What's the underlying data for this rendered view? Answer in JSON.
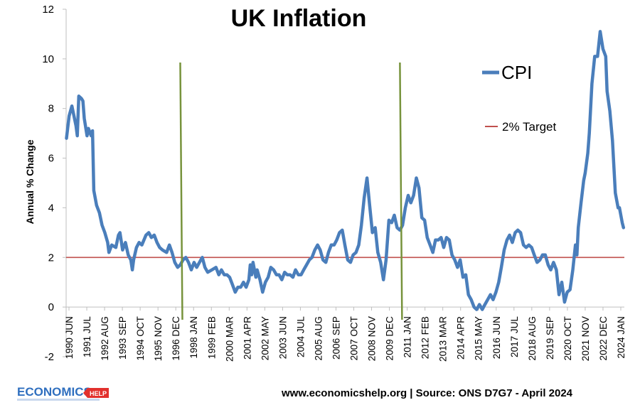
{
  "chart_data": {
    "type": "line",
    "title": "UK Inflation",
    "xlabel": "",
    "ylabel": "Annual % Change",
    "ylim": [
      -2,
      12
    ],
    "yticks": [
      -2,
      0,
      2,
      4,
      6,
      8,
      10,
      12
    ],
    "x_tick_labels": [
      "1990 JUN",
      "1991 JUL",
      "1992 AUG",
      "1993 SEP",
      "1994 OCT",
      "1995 NOV",
      "1996 DEC",
      "1998 JAN",
      "1999 FEB",
      "2000 MAR",
      "2001 APR",
      "2002 MAY",
      "2003 JUN",
      "2004 JUL",
      "2005 AUG",
      "2006 SEP",
      "2007 OCT",
      "2008 NOV",
      "2009 DEC",
      "2011 JAN",
      "2012 FEB",
      "2013 MAR",
      "2014 APR",
      "2015 MAY",
      "2016 JUN",
      "2017 JUL",
      "2018 AUG",
      "2019 SEP",
      "2020 OCT",
      "2021 NOV",
      "2022 DEC",
      "2024 JAN"
    ],
    "x_range": [
      1990.4,
      2024.3
    ],
    "grid": false,
    "legend": "right",
    "series": [
      {
        "name": "CPI",
        "color": "#4a7ebb",
        "points": [
          [
            1990.42,
            6.8
          ],
          [
            1990.58,
            7.7
          ],
          [
            1990.75,
            8.1
          ],
          [
            1991.0,
            7.3
          ],
          [
            1991.08,
            6.9
          ],
          [
            1991.17,
            8.5
          ],
          [
            1991.33,
            8.4
          ],
          [
            1991.42,
            8.3
          ],
          [
            1991.5,
            7.6
          ],
          [
            1991.67,
            6.9
          ],
          [
            1991.75,
            7.2
          ],
          [
            1991.92,
            6.9
          ],
          [
            1992.0,
            7.1
          ],
          [
            1992.08,
            4.7
          ],
          [
            1992.25,
            4.1
          ],
          [
            1992.42,
            3.8
          ],
          [
            1992.58,
            3.3
          ],
          [
            1992.75,
            3.0
          ],
          [
            1992.92,
            2.6
          ],
          [
            1993.0,
            2.2
          ],
          [
            1993.17,
            2.5
          ],
          [
            1993.42,
            2.4
          ],
          [
            1993.58,
            2.9
          ],
          [
            1993.67,
            3.0
          ],
          [
            1993.83,
            2.3
          ],
          [
            1994.0,
            2.6
          ],
          [
            1994.17,
            2.1
          ],
          [
            1994.33,
            1.9
          ],
          [
            1994.42,
            1.5
          ],
          [
            1994.5,
            1.9
          ],
          [
            1994.67,
            2.4
          ],
          [
            1994.83,
            2.6
          ],
          [
            1995.0,
            2.5
          ],
          [
            1995.25,
            2.9
          ],
          [
            1995.42,
            3.0
          ],
          [
            1995.58,
            2.8
          ],
          [
            1995.75,
            2.9
          ],
          [
            1995.92,
            2.6
          ],
          [
            1996.08,
            2.4
          ],
          [
            1996.25,
            2.3
          ],
          [
            1996.5,
            2.2
          ],
          [
            1996.67,
            2.5
          ],
          [
            1996.83,
            2.2
          ],
          [
            1997.0,
            1.8
          ],
          [
            1997.17,
            1.6
          ],
          [
            1997.33,
            1.7
          ],
          [
            1997.5,
            1.9
          ],
          [
            1997.67,
            2.0
          ],
          [
            1997.83,
            1.8
          ],
          [
            1998.0,
            1.5
          ],
          [
            1998.17,
            1.8
          ],
          [
            1998.33,
            1.6
          ],
          [
            1998.58,
            1.9
          ],
          [
            1998.67,
            2.0
          ],
          [
            1998.83,
            1.6
          ],
          [
            1999.0,
            1.4
          ],
          [
            1999.25,
            1.5
          ],
          [
            1999.5,
            1.6
          ],
          [
            1999.67,
            1.3
          ],
          [
            1999.83,
            1.5
          ],
          [
            2000.0,
            1.3
          ],
          [
            2000.17,
            1.3
          ],
          [
            2000.33,
            1.2
          ],
          [
            2000.5,
            0.9
          ],
          [
            2000.67,
            0.6
          ],
          [
            2000.83,
            0.8
          ],
          [
            2001.0,
            0.8
          ],
          [
            2001.17,
            1.0
          ],
          [
            2001.33,
            0.8
          ],
          [
            2001.5,
            1.1
          ],
          [
            2001.58,
            1.7
          ],
          [
            2001.67,
            1.3
          ],
          [
            2001.75,
            1.8
          ],
          [
            2001.92,
            1.2
          ],
          [
            2002.0,
            1.5
          ],
          [
            2002.17,
            1.1
          ],
          [
            2002.33,
            0.6
          ],
          [
            2002.5,
            1.0
          ],
          [
            2002.67,
            1.2
          ],
          [
            2002.83,
            1.6
          ],
          [
            2003.0,
            1.5
          ],
          [
            2003.17,
            1.3
          ],
          [
            2003.33,
            1.3
          ],
          [
            2003.5,
            1.1
          ],
          [
            2003.67,
            1.4
          ],
          [
            2003.83,
            1.3
          ],
          [
            2004.0,
            1.3
          ],
          [
            2004.17,
            1.2
          ],
          [
            2004.33,
            1.5
          ],
          [
            2004.5,
            1.3
          ],
          [
            2004.67,
            1.3
          ],
          [
            2004.83,
            1.5
          ],
          [
            2005.0,
            1.7
          ],
          [
            2005.17,
            1.9
          ],
          [
            2005.33,
            2.0
          ],
          [
            2005.5,
            2.3
          ],
          [
            2005.67,
            2.5
          ],
          [
            2005.83,
            2.3
          ],
          [
            2006.0,
            1.9
          ],
          [
            2006.17,
            1.8
          ],
          [
            2006.33,
            2.2
          ],
          [
            2006.5,
            2.5
          ],
          [
            2006.67,
            2.5
          ],
          [
            2006.83,
            2.7
          ],
          [
            2007.0,
            3.0
          ],
          [
            2007.17,
            3.1
          ],
          [
            2007.33,
            2.5
          ],
          [
            2007.5,
            1.9
          ],
          [
            2007.67,
            1.8
          ],
          [
            2007.83,
            2.1
          ],
          [
            2008.0,
            2.2
          ],
          [
            2008.17,
            2.5
          ],
          [
            2008.33,
            3.3
          ],
          [
            2008.5,
            4.4
          ],
          [
            2008.67,
            5.2
          ],
          [
            2008.83,
            4.1
          ],
          [
            2009.0,
            3.0
          ],
          [
            2009.17,
            3.2
          ],
          [
            2009.33,
            2.2
          ],
          [
            2009.5,
            1.8
          ],
          [
            2009.67,
            1.1
          ],
          [
            2009.83,
            1.9
          ],
          [
            2010.0,
            3.5
          ],
          [
            2010.17,
            3.4
          ],
          [
            2010.33,
            3.7
          ],
          [
            2010.5,
            3.2
          ],
          [
            2010.67,
            3.1
          ],
          [
            2010.83,
            3.3
          ],
          [
            2011.0,
            4.0
          ],
          [
            2011.17,
            4.5
          ],
          [
            2011.33,
            4.2
          ],
          [
            2011.5,
            4.5
          ],
          [
            2011.67,
            5.2
          ],
          [
            2011.83,
            4.8
          ],
          [
            2012.0,
            3.6
          ],
          [
            2012.17,
            3.5
          ],
          [
            2012.33,
            2.8
          ],
          [
            2012.5,
            2.5
          ],
          [
            2012.67,
            2.2
          ],
          [
            2012.83,
            2.7
          ],
          [
            2013.0,
            2.7
          ],
          [
            2013.17,
            2.8
          ],
          [
            2013.33,
            2.4
          ],
          [
            2013.5,
            2.8
          ],
          [
            2013.67,
            2.7
          ],
          [
            2013.83,
            2.1
          ],
          [
            2014.0,
            1.9
          ],
          [
            2014.17,
            1.6
          ],
          [
            2014.33,
            1.9
          ],
          [
            2014.5,
            1.2
          ],
          [
            2014.67,
            1.3
          ],
          [
            2014.83,
            0.5
          ],
          [
            2015.0,
            0.3
          ],
          [
            2015.17,
            0.0
          ],
          [
            2015.33,
            -0.1
          ],
          [
            2015.5,
            0.1
          ],
          [
            2015.67,
            -0.1
          ],
          [
            2015.83,
            0.1
          ],
          [
            2016.0,
            0.3
          ],
          [
            2016.17,
            0.5
          ],
          [
            2016.33,
            0.3
          ],
          [
            2016.5,
            0.6
          ],
          [
            2016.67,
            1.0
          ],
          [
            2016.83,
            1.6
          ],
          [
            2017.0,
            2.3
          ],
          [
            2017.17,
            2.7
          ],
          [
            2017.33,
            2.9
          ],
          [
            2017.5,
            2.6
          ],
          [
            2017.67,
            3.0
          ],
          [
            2017.83,
            3.1
          ],
          [
            2018.0,
            3.0
          ],
          [
            2018.17,
            2.5
          ],
          [
            2018.33,
            2.4
          ],
          [
            2018.5,
            2.5
          ],
          [
            2018.67,
            2.4
          ],
          [
            2018.83,
            2.1
          ],
          [
            2019.0,
            1.8
          ],
          [
            2019.17,
            1.9
          ],
          [
            2019.33,
            2.1
          ],
          [
            2019.5,
            2.1
          ],
          [
            2019.67,
            1.7
          ],
          [
            2019.83,
            1.5
          ],
          [
            2020.0,
            1.8
          ],
          [
            2020.17,
            1.5
          ],
          [
            2020.33,
            0.5
          ],
          [
            2020.5,
            1.0
          ],
          [
            2020.67,
            0.2
          ],
          [
            2020.83,
            0.6
          ],
          [
            2021.0,
            0.7
          ],
          [
            2021.17,
            1.5
          ],
          [
            2021.33,
            2.5
          ],
          [
            2021.42,
            2.1
          ],
          [
            2021.5,
            3.2
          ],
          [
            2021.67,
            4.2
          ],
          [
            2021.83,
            5.1
          ],
          [
            2021.92,
            5.4
          ],
          [
            2022.08,
            6.2
          ],
          [
            2022.17,
            7.0
          ],
          [
            2022.33,
            9.0
          ],
          [
            2022.5,
            10.1
          ],
          [
            2022.67,
            10.1
          ],
          [
            2022.83,
            11.1
          ],
          [
            2023.0,
            10.4
          ],
          [
            2023.17,
            10.1
          ],
          [
            2023.25,
            8.7
          ],
          [
            2023.42,
            7.9
          ],
          [
            2023.58,
            6.7
          ],
          [
            2023.75,
            4.6
          ],
          [
            2023.92,
            4.0
          ],
          [
            2024.0,
            4.0
          ],
          [
            2024.17,
            3.4
          ],
          [
            2024.25,
            3.2
          ]
        ]
      },
      {
        "name": "2% Target",
        "color": "#c0504d",
        "points": [
          [
            1990.4,
            2
          ],
          [
            2024.3,
            2
          ]
        ]
      }
    ],
    "vertical_markers": [
      1997.33,
      2010.67
    ],
    "marker_color": "#77933c"
  },
  "footer": {
    "source": "www.economicshelp.org | Source: ONS D7G7 - April 2024"
  },
  "logo": {
    "text": "ECONOMICS",
    "badge": "HELP"
  }
}
